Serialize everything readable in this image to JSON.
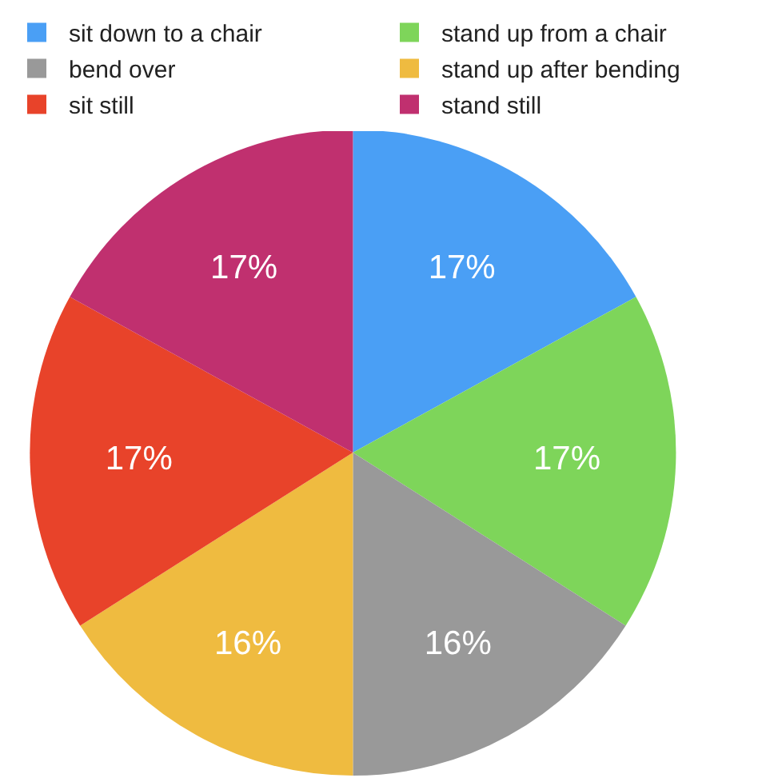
{
  "chart_data": {
    "type": "pie",
    "categories": [
      "sit down to a chair",
      "stand up from a chair",
      "bend over",
      "stand up after bending",
      "sit still",
      "stand still"
    ],
    "values": [
      17,
      17,
      16,
      16,
      17,
      17
    ],
    "colors": [
      "#4a9ff5",
      "#7ed55a",
      "#999999",
      "#efbb40",
      "#e8432a",
      "#c0306f"
    ],
    "value_labels": [
      "17%",
      "17%",
      "16%",
      "16%",
      "17%",
      "17%"
    ],
    "legend": "top"
  }
}
